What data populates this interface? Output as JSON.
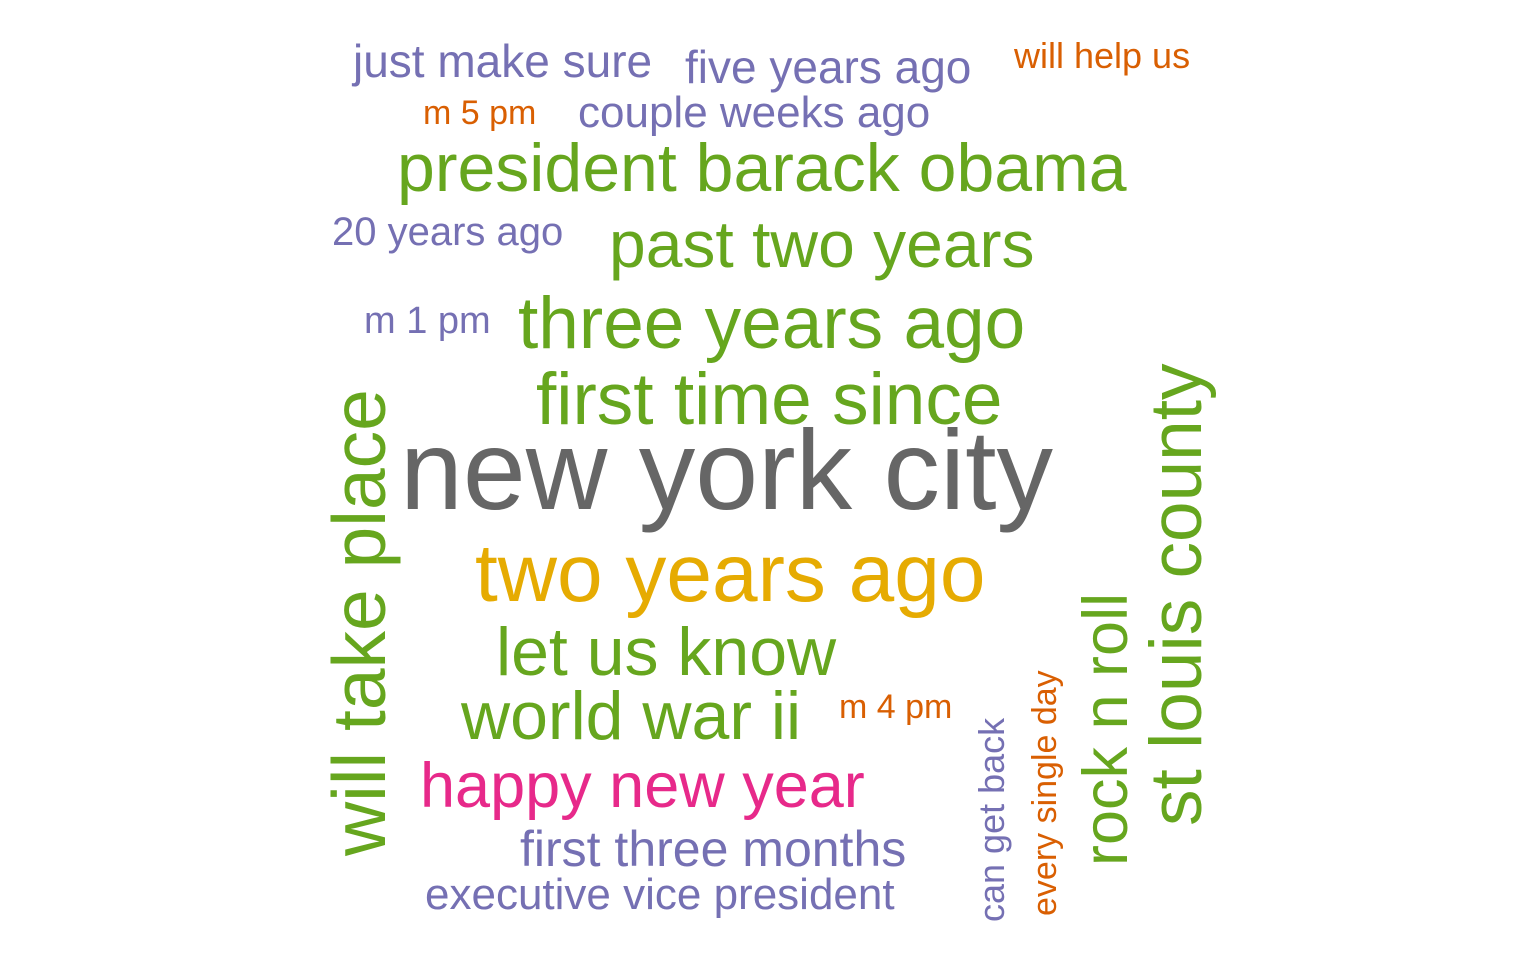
{
  "palette": {
    "purple": "#7570b3",
    "orange": "#d95f02",
    "green": "#66a61e",
    "gray": "#666666",
    "gold": "#e6ab02",
    "magenta": "#e7298a"
  },
  "words": [
    {
      "text": "just make sure",
      "color": "purple",
      "orientation": "horizontal"
    },
    {
      "text": "five years ago",
      "color": "purple",
      "orientation": "horizontal"
    },
    {
      "text": "will help us",
      "color": "orange",
      "orientation": "horizontal"
    },
    {
      "text": "m 5 pm",
      "color": "orange",
      "orientation": "horizontal"
    },
    {
      "text": "couple weeks ago",
      "color": "purple",
      "orientation": "horizontal"
    },
    {
      "text": "president barack obama",
      "color": "green",
      "orientation": "horizontal"
    },
    {
      "text": "20 years ago",
      "color": "purple",
      "orientation": "horizontal"
    },
    {
      "text": "past two years",
      "color": "green",
      "orientation": "horizontal"
    },
    {
      "text": "m 1 pm",
      "color": "purple",
      "orientation": "horizontal"
    },
    {
      "text": "three years ago",
      "color": "green",
      "orientation": "horizontal"
    },
    {
      "text": "first time since",
      "color": "green",
      "orientation": "horizontal"
    },
    {
      "text": "new york city",
      "color": "gray",
      "orientation": "horizontal"
    },
    {
      "text": "two years ago",
      "color": "gold",
      "orientation": "horizontal"
    },
    {
      "text": "let us know",
      "color": "green",
      "orientation": "horizontal"
    },
    {
      "text": "world war ii",
      "color": "green",
      "orientation": "horizontal"
    },
    {
      "text": "m 4 pm",
      "color": "orange",
      "orientation": "horizontal"
    },
    {
      "text": "happy new year",
      "color": "magenta",
      "orientation": "horizontal"
    },
    {
      "text": "first three months",
      "color": "purple",
      "orientation": "horizontal"
    },
    {
      "text": "executive vice president",
      "color": "purple",
      "orientation": "horizontal"
    },
    {
      "text": "will take place",
      "color": "green",
      "orientation": "vertical"
    },
    {
      "text": "can get back",
      "color": "purple",
      "orientation": "vertical"
    },
    {
      "text": "every single day",
      "color": "orange",
      "orientation": "vertical"
    },
    {
      "text": "rock n roll",
      "color": "green",
      "orientation": "vertical"
    },
    {
      "text": "st louis county",
      "color": "green",
      "orientation": "vertical"
    }
  ]
}
